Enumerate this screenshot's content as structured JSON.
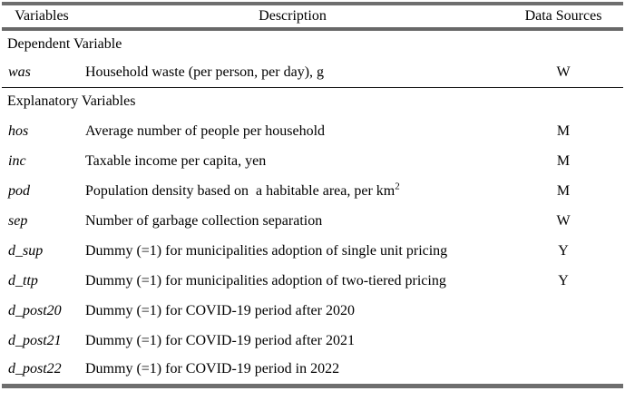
{
  "table": {
    "headers": [
      "Variables",
      "Description",
      "Data Sources"
    ],
    "sections": [
      {
        "title": "Dependent Variable"
      },
      {
        "title": "Explanatory Variables"
      }
    ],
    "rows": [
      {
        "variable": "was",
        "description": "Household waste (per person, per day), g",
        "source": "W"
      },
      {
        "variable": "hos",
        "description": "Average number of people per household",
        "source": "M"
      },
      {
        "variable": "inc",
        "description": "Taxable income per capita, yen",
        "source": "M"
      },
      {
        "variable": "pod",
        "description": "Population density based on  a habitable area, per km",
        "description_superscript": "2",
        "source": "M"
      },
      {
        "variable": "sep",
        "description": "Number of garbage collection separation",
        "source": "W"
      },
      {
        "variable": "d_sup",
        "description": "Dummy (=1) for municipalities adoption of single unit pricing",
        "source": "Y"
      },
      {
        "variable": "d_ttp",
        "description": "Dummy (=1) for municipalities adoption of two-tiered pricing",
        "source": "Y"
      },
      {
        "variable": "d_post20",
        "description": "Dummy (=1) for COVID-19 period after 2020",
        "source": ""
      },
      {
        "variable": "d_post21",
        "description": "Dummy (=1) for COVID-19 period after 2021",
        "source": ""
      },
      {
        "variable": "d_post22",
        "description": "Dummy (=1) for COVID-19 period in 2022",
        "source": ""
      }
    ],
    "colors": {
      "thick_rule": "#6e6e6e",
      "thin_rule": "#111111",
      "text": "#000000",
      "background": "#ffffff"
    }
  }
}
